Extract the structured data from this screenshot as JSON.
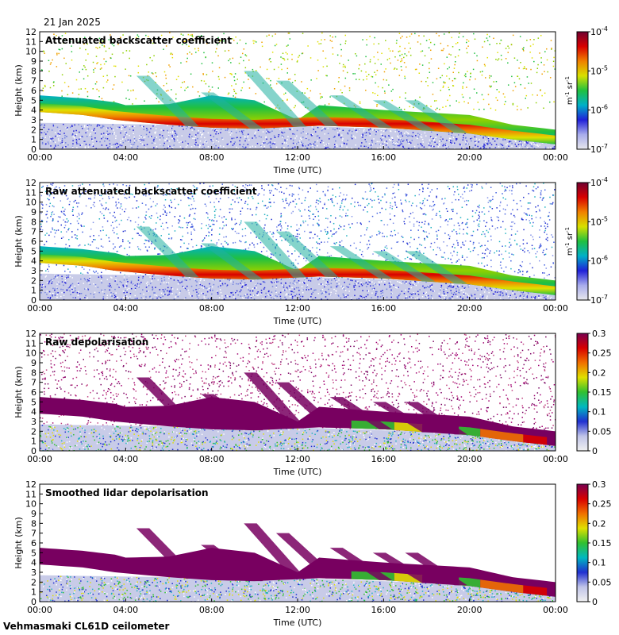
{
  "header": {
    "date": "21 Jan 2025"
  },
  "footer": {
    "site": "Vehmasmaki CL61D ceilometer"
  },
  "colors": {
    "backscatter_scale": [
      "#e8e8ec",
      "#a8acec",
      "#2020d8",
      "#00b0c8",
      "#20c040",
      "#d8e000",
      "#f08000",
      "#d80000",
      "#700030"
    ],
    "depol_scale": [
      "#f0f0f0",
      "#c0c4e8",
      "#2030d0",
      "#00b8c0",
      "#30c030",
      "#e0e000",
      "#f07000",
      "#d80000",
      "#780050"
    ],
    "depol_fill": "#780060",
    "ground_band": "#c8cbe8"
  },
  "chart_data": [
    {
      "type": "heatmap",
      "title": "Attenuated backscatter coefficient",
      "xlabel": "Time (UTC)",
      "ylabel": "Height (km)",
      "xticks": [
        "00:00",
        "04:00",
        "08:00",
        "12:00",
        "16:00",
        "20:00",
        "00:00"
      ],
      "yticks": [
        0,
        1,
        2,
        3,
        4,
        5,
        6,
        7,
        8,
        9,
        10,
        11,
        12
      ],
      "ylim": [
        0,
        12
      ],
      "xlim_hours": [
        0,
        24
      ],
      "colorbar": {
        "scale": "log",
        "ticks": [
          "10^-7",
          "10^-6",
          "10^-5",
          "10^-4"
        ],
        "unit": "m-1 sr-1",
        "unit_main": "m",
        "unit_exp1": "-1",
        "unit_mid": " sr",
        "unit_exp2": "-1"
      },
      "cloud_base_km": [
        [
          0,
          3.8
        ],
        [
          2,
          3.5
        ],
        [
          3.5,
          3.0
        ],
        [
          4,
          2.9
        ],
        [
          6,
          2.5
        ],
        [
          8,
          2.2
        ],
        [
          10,
          2.1
        ],
        [
          12,
          2.3
        ],
        [
          13,
          2.4
        ],
        [
          16,
          2.2
        ],
        [
          20,
          1.6
        ],
        [
          22,
          1.0
        ],
        [
          24,
          0.5
        ]
      ],
      "cloud_top_km": [
        [
          0,
          5.5
        ],
        [
          2,
          5.2
        ],
        [
          3.5,
          4.8
        ],
        [
          4,
          4.5
        ],
        [
          6,
          4.6
        ],
        [
          8,
          5.5
        ],
        [
          10,
          5.0
        ],
        [
          12,
          3.0
        ],
        [
          13,
          4.5
        ],
        [
          16,
          4.0
        ],
        [
          20,
          3.5
        ],
        [
          22,
          2.5
        ],
        [
          24,
          2.0
        ]
      ],
      "boundary_layer_km": [
        [
          0,
          2.7
        ],
        [
          6,
          2.5
        ],
        [
          12,
          2.4
        ],
        [
          16,
          2.1
        ],
        [
          20,
          1.8
        ],
        [
          24,
          1.5
        ]
      ]
    },
    {
      "type": "heatmap",
      "title": "Raw attenuated backscatter coefficient",
      "xlabel": "Time (UTC)",
      "ylabel": "Height (km)",
      "xticks": [
        "00:00",
        "04:00",
        "08:00",
        "12:00",
        "16:00",
        "20:00",
        "00:00"
      ],
      "yticks": [
        0,
        1,
        2,
        3,
        4,
        5,
        6,
        7,
        8,
        9,
        10,
        11,
        12
      ],
      "ylim": [
        0,
        12
      ],
      "xlim_hours": [
        0,
        24
      ],
      "colorbar": {
        "scale": "log",
        "ticks": [
          "10^-7",
          "10^-6",
          "10^-5",
          "10^-4"
        ],
        "unit": "m-1 sr-1",
        "unit_main": "m",
        "unit_exp1": "-1",
        "unit_mid": " sr",
        "unit_exp2": "-1"
      }
    },
    {
      "type": "heatmap",
      "title": "Raw depolarisation",
      "xlabel": "Time (UTC)",
      "ylabel": "Height (km)",
      "xticks": [
        "00:00",
        "04:00",
        "08:00",
        "12:00",
        "16:00",
        "20:00",
        "00:00"
      ],
      "yticks": [
        0,
        1,
        2,
        3,
        4,
        5,
        6,
        7,
        8,
        9,
        10,
        11,
        12
      ],
      "ylim": [
        0,
        12
      ],
      "xlim_hours": [
        0,
        24
      ],
      "colorbar": {
        "scale": "linear",
        "ticks": [
          "0",
          "0.05",
          "0.1",
          "0.15",
          "0.2",
          "0.25",
          "0.3"
        ],
        "range": [
          0,
          0.3
        ]
      }
    },
    {
      "type": "heatmap",
      "title": "Smoothed lidar depolarisation",
      "xlabel": "Time (UTC)",
      "ylabel": "Height (km)",
      "xticks": [
        "00:00",
        "04:00",
        "08:00",
        "12:00",
        "16:00",
        "20:00",
        "00:00"
      ],
      "yticks": [
        0,
        1,
        2,
        3,
        4,
        5,
        6,
        7,
        8,
        9,
        10,
        11,
        12
      ],
      "ylim": [
        0,
        12
      ],
      "xlim_hours": [
        0,
        24
      ],
      "colorbar": {
        "scale": "linear",
        "ticks": [
          "0",
          "0.05",
          "0.1",
          "0.15",
          "0.2",
          "0.25",
          "0.3"
        ],
        "range": [
          0,
          0.3
        ]
      }
    }
  ]
}
